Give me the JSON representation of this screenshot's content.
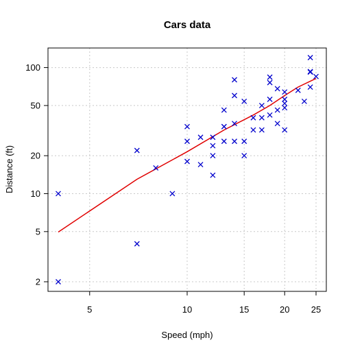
{
  "chart_data": {
    "type": "scatter",
    "title": "Cars data",
    "xlabel": "Speed (mph)",
    "ylabel": "Distance (ft)",
    "x_scale": "log",
    "y_scale": "log",
    "xlim": [
      4,
      25
    ],
    "ylim": [
      2,
      120
    ],
    "xticks": [
      5,
      10,
      15,
      20,
      25
    ],
    "yticks": [
      2,
      5,
      10,
      20,
      50,
      100
    ],
    "grid": true,
    "point_marker": "x",
    "colors": {
      "points": "#0000cc",
      "line": "#e00000",
      "grid": "#c8c8c8",
      "axes": "#000000"
    },
    "series": [
      {
        "type": "scatter",
        "points": [
          [
            4,
            2
          ],
          [
            4,
            10
          ],
          [
            7,
            4
          ],
          [
            7,
            22
          ],
          [
            8,
            16
          ],
          [
            9,
            10
          ],
          [
            10,
            18
          ],
          [
            10,
            26
          ],
          [
            10,
            34
          ],
          [
            11,
            17
          ],
          [
            11,
            28
          ],
          [
            12,
            14
          ],
          [
            12,
            20
          ],
          [
            12,
            24
          ],
          [
            12,
            28
          ],
          [
            13,
            26
          ],
          [
            13,
            34
          ],
          [
            13,
            34
          ],
          [
            13,
            46
          ],
          [
            14,
            26
          ],
          [
            14,
            36
          ],
          [
            14,
            60
          ],
          [
            14,
            80
          ],
          [
            15,
            20
          ],
          [
            15,
            26
          ],
          [
            15,
            54
          ],
          [
            16,
            32
          ],
          [
            16,
            40
          ],
          [
            17,
            32
          ],
          [
            17,
            40
          ],
          [
            17,
            50
          ],
          [
            18,
            42
          ],
          [
            18,
            56
          ],
          [
            18,
            76
          ],
          [
            18,
            84
          ],
          [
            19,
            36
          ],
          [
            19,
            46
          ],
          [
            19,
            68
          ],
          [
            20,
            32
          ],
          [
            20,
            48
          ],
          [
            20,
            52
          ],
          [
            20,
            56
          ],
          [
            20,
            64
          ],
          [
            22,
            66
          ],
          [
            23,
            54
          ],
          [
            24,
            70
          ],
          [
            24,
            92
          ],
          [
            24,
            93
          ],
          [
            24,
            120
          ],
          [
            25,
            85
          ]
        ]
      },
      {
        "type": "line",
        "points": [
          [
            4,
            4.96
          ],
          [
            7,
            13
          ],
          [
            10,
            21.5
          ],
          [
            13,
            32
          ],
          [
            16,
            42
          ],
          [
            18,
            50
          ],
          [
            20,
            60
          ],
          [
            22,
            70
          ],
          [
            25,
            82
          ]
        ]
      }
    ]
  }
}
